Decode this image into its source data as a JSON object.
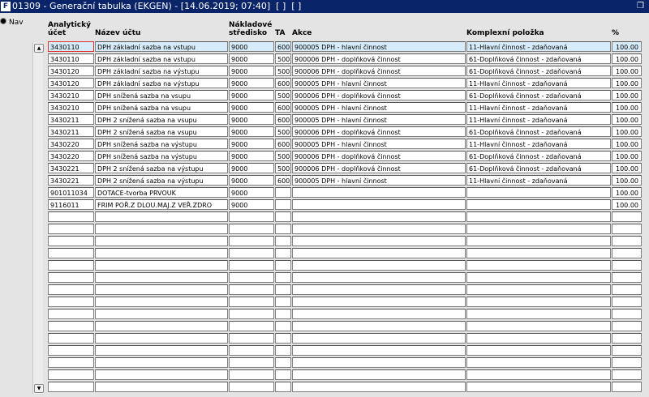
{
  "window": {
    "title": "01309 - Generační tabulka (EKGEN) - [14.06.2019; 07:40]  [ ]  [ ]"
  },
  "nav": {
    "label": "Nav"
  },
  "table": {
    "headers": {
      "account": "Analytický účet",
      "name": "Název účtu",
      "center": "Nákladové středisko",
      "ta": "TA",
      "action": "Akce",
      "item": "Komplexní položka",
      "pct": "%"
    },
    "rows": [
      {
        "account": "3430110",
        "name": "DPH základní sazba na vstupu",
        "center": "9000",
        "ta": "600",
        "action": "900005 DPH - hlavní činnost",
        "item": "11-Hlavní činnost - zdaňovaná",
        "pct": "100.00"
      },
      {
        "account": "3430110",
        "name": "DPH základní sazba na vstupu",
        "center": "9000",
        "ta": "500",
        "action": "900006 DPH - doplňková činnost",
        "item": "61-Doplňková činnost - zdaňovaná",
        "pct": "100.00"
      },
      {
        "account": "3430120",
        "name": "DPH základní sazba na výstupu",
        "center": "9000",
        "ta": "500",
        "action": "900006 DPH - doplňková činnost",
        "item": "61-Doplňková činnost - zdaňovaná",
        "pct": "100.00"
      },
      {
        "account": "3430120",
        "name": "DPH základní sazba na výstupu",
        "center": "9000",
        "ta": "600",
        "action": "900005 DPH - hlavní činnost",
        "item": "11-Hlavní činnost - zdaňovaná",
        "pct": "100.00"
      },
      {
        "account": "3430210",
        "name": "DPH snížená sazba na vsupu",
        "center": "9000",
        "ta": "500",
        "action": "900006 DPH - doplňková činnost",
        "item": "61-Doplňková činnost - zdaňovaná",
        "pct": "100.00"
      },
      {
        "account": "3430210",
        "name": "DPH snížená sazba na vsupu",
        "center": "9000",
        "ta": "600",
        "action": "900005 DPH - hlavní činnost",
        "item": "11-Hlavní činnost - zdaňovaná",
        "pct": "100.00"
      },
      {
        "account": "3430211",
        "name": "DPH 2 snížená sazba na vsupu",
        "center": "9000",
        "ta": "600",
        "action": "900005 DPH - hlavní činnost",
        "item": "11-Hlavní činnost - zdaňovaná",
        "pct": "100.00"
      },
      {
        "account": "3430211",
        "name": "DPH 2 snížená sazba na vsupu",
        "center": "9000",
        "ta": "500",
        "action": "900006 DPH - doplňková činnost",
        "item": "61-Doplňková činnost - zdaňovaná",
        "pct": "100.00"
      },
      {
        "account": "3430220",
        "name": "DPH snížená sazba na výstupu",
        "center": "9000",
        "ta": "600",
        "action": "900005 DPH - hlavní činnost",
        "item": "11-Hlavní činnost - zdaňovaná",
        "pct": "100.00"
      },
      {
        "account": "3430220",
        "name": "DPH snížená sazba na výstupu",
        "center": "9000",
        "ta": "500",
        "action": "900006 DPH - doplňková činnost",
        "item": "61-Doplňková činnost - zdaňovaná",
        "pct": "100.00"
      },
      {
        "account": "3430221",
        "name": "DPH 2 snížená sazba na výstupu",
        "center": "9000",
        "ta": "500",
        "action": "900006 DPH - doplňková činnost",
        "item": "61-Doplňková činnost - zdaňovaná",
        "pct": "100.00"
      },
      {
        "account": "3430221",
        "name": "DPH 2 snížená sazba na výstupu",
        "center": "9000",
        "ta": "600",
        "action": "900005 DPH - hlavní činnost",
        "item": "11-Hlavní činnost - zdaňovaná",
        "pct": "100.00"
      },
      {
        "account": "901011034",
        "name": "DOTACE-tvorba PRVOUK",
        "center": "9000",
        "pct": "100.00"
      },
      {
        "account": "9116011",
        "name": "FRIM POŘ.Z DLOU.MAJ.Z VEŘ.ZDRO",
        "center": "9000",
        "pct": "100.00"
      }
    ]
  }
}
